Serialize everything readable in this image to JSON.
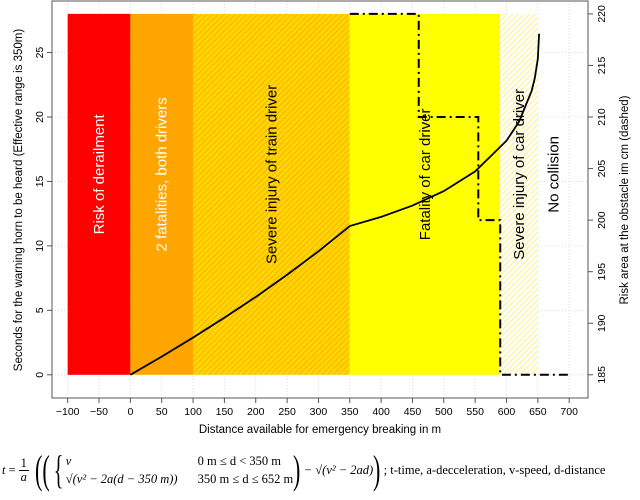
{
  "chart_data": {
    "type": "line",
    "xlabel": "Distance available for emergency breaking in m",
    "ylabel": "Seconds for the warning horn to be heard (Effective range is 350m)",
    "y2label": "Risk area at the obstacle im cm (dashed)",
    "xlim": [
      -125,
      730
    ],
    "ylim": [
      -1.8,
      29
    ],
    "y2lim": [
      182.75,
      221.25
    ],
    "xticks": [
      -100,
      -50,
      0,
      50,
      100,
      150,
      200,
      250,
      300,
      350,
      400,
      450,
      500,
      550,
      600,
      650,
      700
    ],
    "xtick_labels": [
      "−100",
      "−50",
      "0",
      "50",
      "100",
      "150",
      "200",
      "250",
      "300",
      "350",
      "400",
      "450",
      "500",
      "550",
      "600",
      "650",
      "700"
    ],
    "yticks": [
      0,
      5,
      10,
      15,
      20,
      25
    ],
    "y2ticks": [
      185,
      190,
      195,
      200,
      205,
      210,
      215,
      220
    ],
    "grid": true,
    "zones": [
      {
        "label": "Risk of derailment",
        "from": -100,
        "to": 0,
        "top": 28,
        "color": "#ff0000",
        "hatched": false,
        "text_color": "#ffffff"
      },
      {
        "label": "2 fatalities, both drivers",
        "from": 0,
        "to": 100,
        "top": 28,
        "color": "#ffa500",
        "hatched": false,
        "text_color": "#ffffff"
      },
      {
        "label": "Severe injury of train driver",
        "from": 100,
        "to": 350,
        "top": 28,
        "color": "#ffd700",
        "hatch_color": "#ffa500",
        "hatched": true,
        "text_color": "#000000"
      },
      {
        "label": "Fatality of car driver",
        "from": 350,
        "to": 590,
        "top": 28,
        "color": "#ffff00",
        "hatched": false,
        "text_color": "#000000"
      },
      {
        "label": "Severe injury of car driver",
        "from": 590,
        "to": 650,
        "top": 28,
        "color": "#ffffff",
        "hatch_color": "#ffee66",
        "hatched": true,
        "text_color": "#000000"
      },
      {
        "label": "No collision",
        "from": 650,
        "to": 700,
        "top": 28,
        "color": "none",
        "hatched": false,
        "text_color": "#000000"
      }
    ],
    "series": [
      {
        "axis": "left",
        "style": "solid",
        "color": "#000000",
        "x": [
          0,
          50,
          100,
          150,
          200,
          250,
          300,
          350,
          400,
          450,
          500,
          550,
          600,
          620,
          640,
          645,
          650,
          652
        ],
        "y": [
          0,
          1.41,
          2.89,
          4.43,
          6.04,
          7.76,
          9.58,
          11.54,
          12.25,
          13.13,
          14.25,
          15.78,
          18.16,
          19.64,
          22.01,
          22.98,
          24.53,
          26.46
        ]
      },
      {
        "axis": "right",
        "style": "dashdot",
        "color": "#000000",
        "x": [
          350,
          460,
          460,
          555,
          555,
          590,
          590,
          700
        ],
        "y": [
          220,
          220,
          210,
          210,
          200,
          200,
          185,
          185
        ]
      }
    ]
  },
  "formula": {
    "lhs": "t",
    "eq": "=",
    "frac_num": "1",
    "frac_den": "a",
    "case1_expr": "v",
    "case1_cond": "0 m ≤ d < 350 m",
    "case2_expr": "√(v² − 2a(d − 350 m))",
    "case2_cond": "350 m ≤ d ≤ 652 m",
    "minus_term": "− √(v² − 2ad)",
    "legend": "; t-time, a-decceleration, v-speed, d-distance"
  }
}
